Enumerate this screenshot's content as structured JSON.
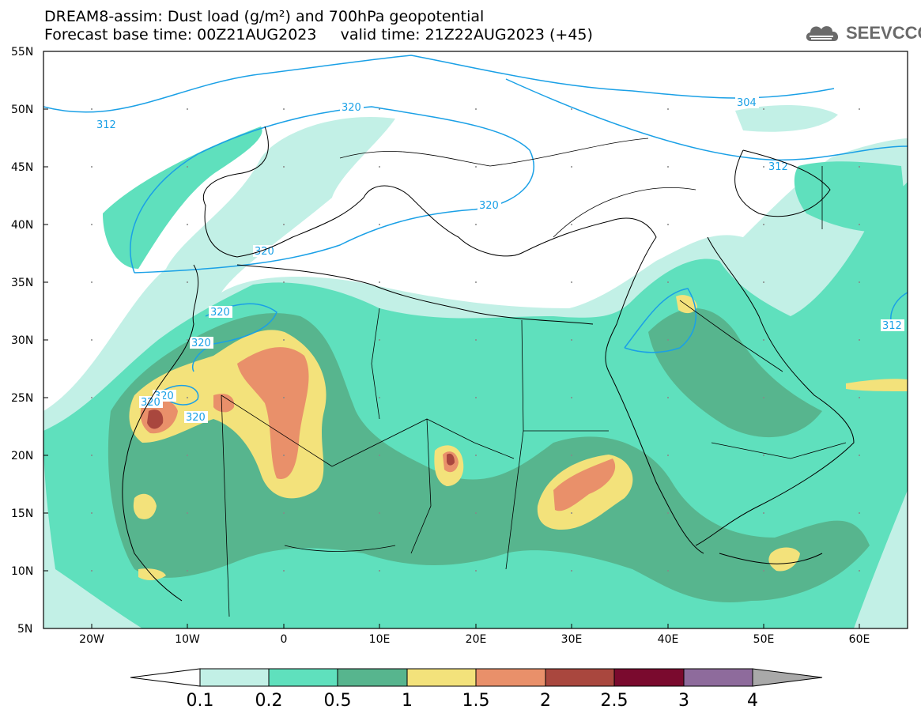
{
  "title": {
    "line1": "DREAM8-assim: Dust load (g/m²) and 700hPa geopotential",
    "line2": "Forecast base time: 00Z21AUG2023     valid time: 21Z22AUG2023 (+45)"
  },
  "logo": {
    "text": "SEEVCCC",
    "icon": "cloud-icon"
  },
  "map": {
    "lat_labels": [
      "55N",
      "50N",
      "45N",
      "40N",
      "35N",
      "30N",
      "25N",
      "20N",
      "15N",
      "10N",
      "5N"
    ],
    "lon_labels": [
      "20W",
      "10W",
      "0",
      "10E",
      "20E",
      "30E",
      "40E",
      "50E",
      "60E"
    ],
    "contour_labels": [
      "312",
      "320",
      "304",
      "312",
      "320",
      "320",
      "320",
      "320",
      "320",
      "320",
      "320",
      "312"
    ]
  },
  "colorbar": {
    "labels": [
      "0.1",
      "0.2",
      "0.5",
      "1",
      "1.5",
      "2",
      "2.5",
      "3",
      "4"
    ],
    "colors": [
      "#ffffff",
      "#c2f0e6",
      "#5fe0bd",
      "#57b58e",
      "#f3e27b",
      "#e9906a",
      "#a9473e",
      "#7a0a2e",
      "#8e6b9c",
      "#a9a9a9"
    ]
  }
}
